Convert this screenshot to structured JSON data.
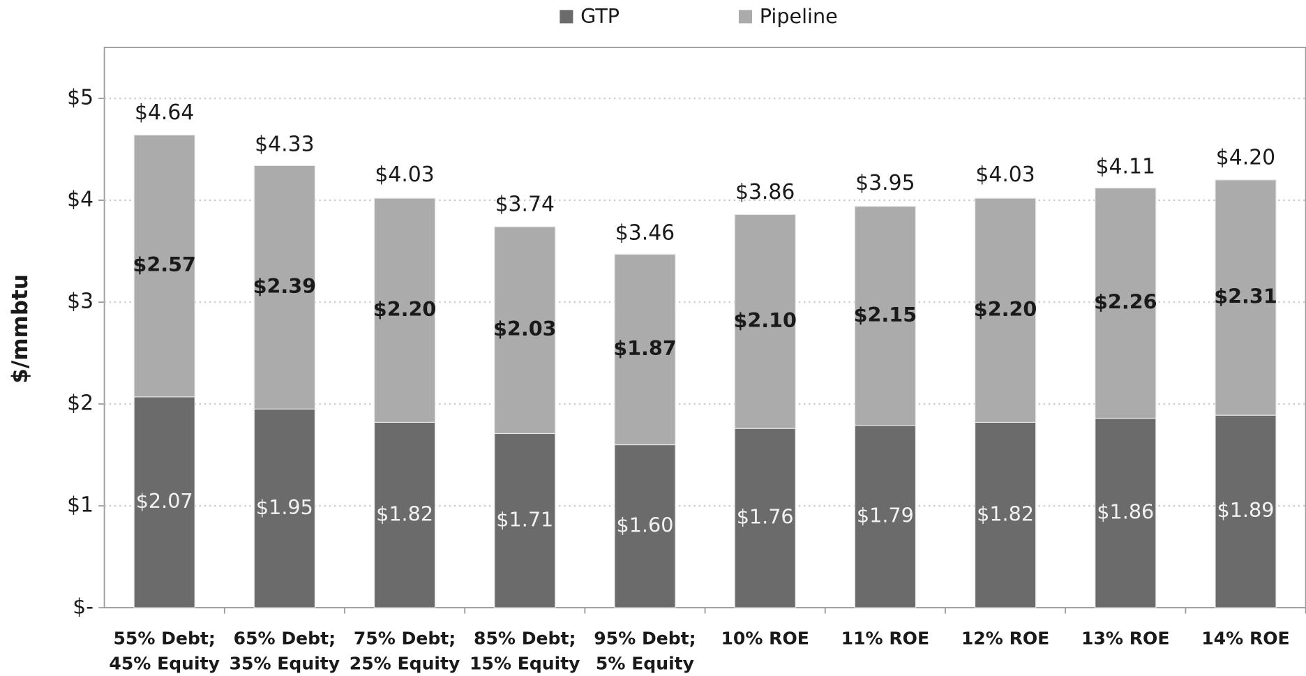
{
  "chart_data": {
    "type": "bar",
    "stacked": true,
    "y_label": "$/mmbtu",
    "categories": [
      "55% Debt; 45% Equity",
      "65% Debt; 35% Equity",
      "75% Debt; 25% Equity",
      "85% Debt; 15% Equity",
      "95% Debt; 5% Equity",
      "10% ROE",
      "11% ROE",
      "12% ROE",
      "13% ROE",
      "14% ROE"
    ],
    "series": [
      {
        "name": "GTP",
        "color": "#6b6b6b",
        "values": [
          2.07,
          1.95,
          1.82,
          1.71,
          1.6,
          1.76,
          1.79,
          1.82,
          1.86,
          1.89
        ],
        "value_labels": [
          "$2.07",
          "$1.95",
          "$1.82",
          "$1.71",
          "$1.60",
          "$1.76",
          "$1.79",
          "$1.82",
          "$1.86",
          "$1.89"
        ]
      },
      {
        "name": "Pipeline",
        "color": "#ababab",
        "values": [
          2.57,
          2.39,
          2.2,
          2.03,
          1.87,
          2.1,
          2.15,
          2.2,
          2.26,
          2.31
        ],
        "value_labels": [
          "$2.57",
          "$2.39",
          "$2.20",
          "$2.03",
          "$1.87",
          "$2.10",
          "$2.15",
          "$2.20",
          "$2.26",
          "$2.31"
        ]
      }
    ],
    "totals": [
      4.64,
      4.33,
      4.03,
      3.74,
      3.46,
      3.86,
      3.95,
      4.03,
      4.11,
      4.2
    ],
    "total_labels": [
      "$4.64",
      "$4.33",
      "$4.03",
      "$3.74",
      "$3.46",
      "$3.86",
      "$3.95",
      "$4.03",
      "$4.11",
      "$4.20"
    ],
    "ylim": [
      0,
      5.5
    ],
    "yticks": [
      {
        "value": 0,
        "label": "$-"
      },
      {
        "value": 1,
        "label": "$1"
      },
      {
        "value": 2,
        "label": "$2"
      },
      {
        "value": 3,
        "label": "$3"
      },
      {
        "value": 4,
        "label": "$4"
      },
      {
        "value": 5,
        "label": "$5"
      }
    ],
    "grid": true,
    "legend": "top"
  }
}
